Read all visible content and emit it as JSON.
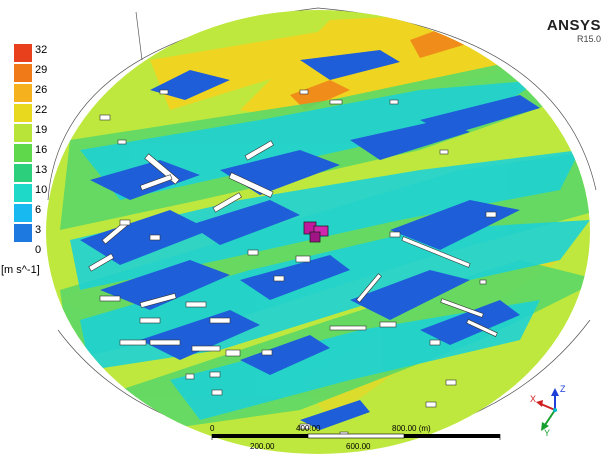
{
  "logo": {
    "text": "ANSYS",
    "version": "R15.0"
  },
  "legend": {
    "unit": "[m s^-1]",
    "ticks": [
      "32",
      "29",
      "26",
      "22",
      "19",
      "16",
      "13",
      "10",
      "6",
      "3",
      "0"
    ],
    "colors": [
      "#e8401c",
      "#f07a18",
      "#f6b21e",
      "#e8d81e",
      "#b8e43a",
      "#5fd84c",
      "#2cd07c",
      "#1ed8c8",
      "#18b8f0",
      "#1d78e0",
      "#2a3ec8"
    ]
  },
  "scale_bar": {
    "top_labels": [
      "0",
      "400.00",
      "800.00 (m)"
    ],
    "bottom_labels": [
      "200.00",
      "600.00"
    ]
  },
  "triad": {
    "x_label": "X",
    "y_label": "Y",
    "z_label": "Z"
  },
  "colors": {
    "background_field": "#c4ec3c",
    "fast_band": "#f2d420",
    "very_fast": "#f08c1a",
    "medium": "#56d86a",
    "slow": "#1cd4d8",
    "very_slow": "#1f5fd8",
    "building": "#ffffff",
    "target_building": "#c2189e"
  }
}
